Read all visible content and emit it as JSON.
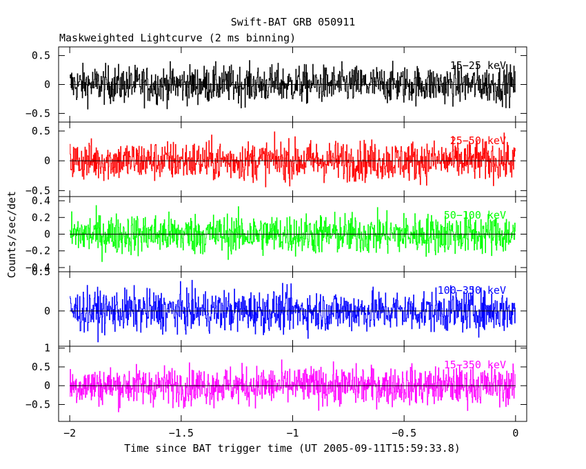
{
  "title": "Swift-BAT GRB 050911",
  "subtitle": "Maskweighted Lightcurve (2 ms binning)",
  "chart_data": [
    {
      "type": "line",
      "series": [
        {
          "name": "15-25 keV",
          "color": "#000000"
        }
      ],
      "ylim": [
        -0.65,
        0.65
      ],
      "yticks": [
        -0.5,
        0,
        0.5
      ],
      "ytick_labels": [
        "−0.5",
        "0",
        "0.5"
      ],
      "amplitude": 0.32,
      "band_label": "15−25 keV"
    },
    {
      "type": "line",
      "series": [
        {
          "name": "25-50 keV",
          "color": "#ff0000"
        }
      ],
      "ylim": [
        -0.6,
        0.65
      ],
      "yticks": [
        -0.5,
        0,
        0.5
      ],
      "ytick_labels": [
        "−0.5",
        "0",
        "0.5"
      ],
      "amplitude": 0.33,
      "band_label": "25−50 keV"
    },
    {
      "type": "line",
      "series": [
        {
          "name": "50-100 keV",
          "color": "#00ff00"
        }
      ],
      "ylim": [
        -0.45,
        0.45
      ],
      "yticks": [
        -0.4,
        -0.2,
        0,
        0.2,
        0.4
      ],
      "ytick_labels": [
        "−0.4",
        "−0.2",
        "0",
        "0.2",
        "0.4"
      ],
      "amplitude": 0.24,
      "band_label": "50−100 keV"
    },
    {
      "type": "line",
      "series": [
        {
          "name": "100-350 keV",
          "color": "#0000ff"
        }
      ],
      "ylim": [
        -0.45,
        0.5
      ],
      "yticks": [
        0,
        0.5
      ],
      "ytick_labels": [
        "0",
        "0.5"
      ],
      "amplitude": 0.26,
      "band_label": "100−350 keV"
    },
    {
      "type": "line",
      "series": [
        {
          "name": "15-350 keV",
          "color": "#ff00ff"
        }
      ],
      "ylim": [
        -0.95,
        1.05
      ],
      "yticks": [
        -0.5,
        0,
        0.5,
        1
      ],
      "ytick_labels": [
        "−0.5",
        "0",
        "0.5",
        "1"
      ],
      "amplitude": 0.5,
      "band_label": "15−350 keV"
    }
  ],
  "x_axis": {
    "xlim": [
      -2.05,
      0.05
    ],
    "xticks": [
      -2,
      -1.5,
      -1,
      -0.5,
      0
    ],
    "xtick_labels": [
      "−2",
      "−1.5",
      "−1",
      "−0.5",
      "0"
    ],
    "xlabel": "Time since BAT trigger time (UT 2005-09-11T15:59:33.8)"
  },
  "ylabel": "Counts/sec/det",
  "x_start": -2.0,
  "x_end": 0.0,
  "bin_width": 0.002
}
